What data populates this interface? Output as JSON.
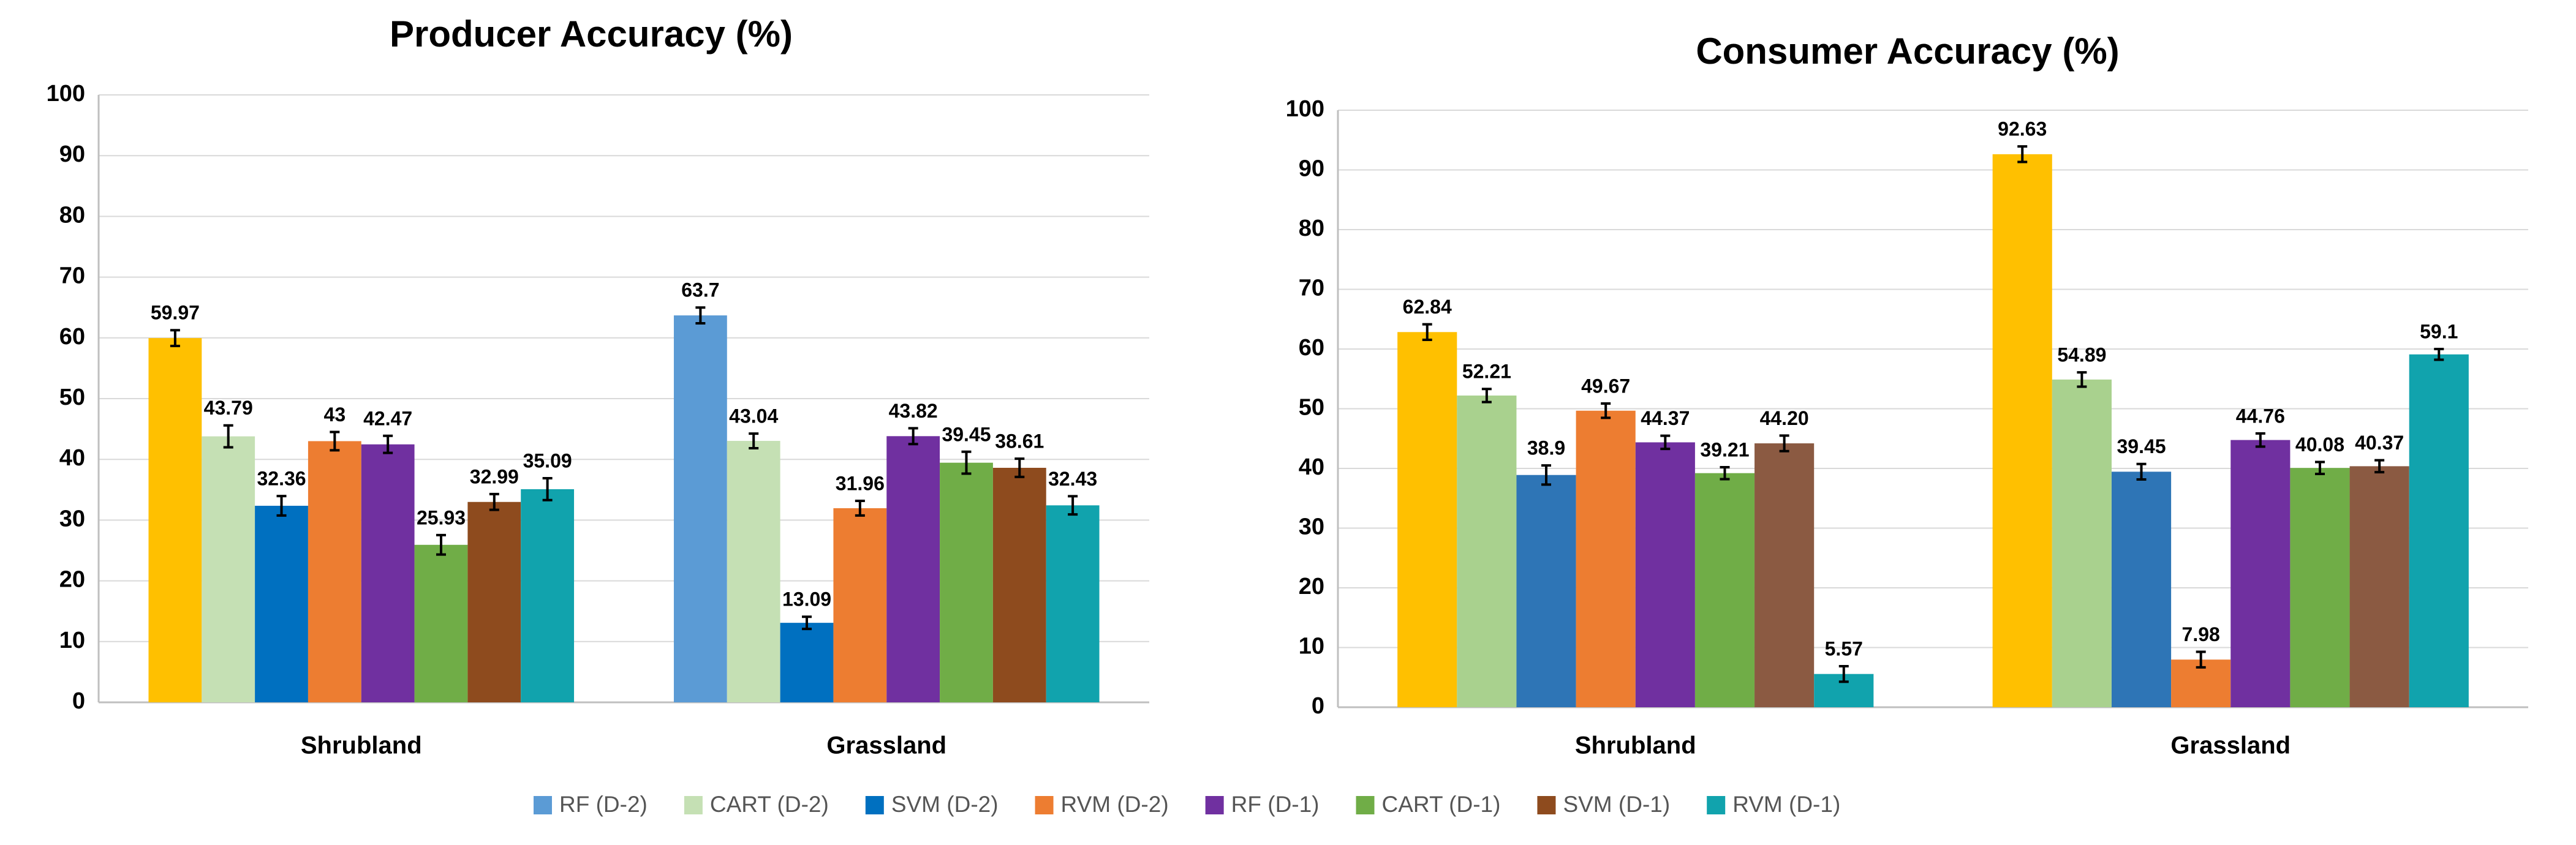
{
  "chart_data": [
    {
      "type": "bar",
      "title": "Producer  Accuracy (%)",
      "categories": [
        "Shrubland",
        "Grassland"
      ],
      "ylim": [
        0,
        100
      ],
      "yticks": [
        0,
        10,
        20,
        30,
        40,
        50,
        60,
        70,
        80,
        90,
        100
      ],
      "grid": true,
      "series": [
        {
          "colors": [
            "#ffc000",
            "#5b9bd5"
          ],
          "values": [
            59.97,
            63.7
          ],
          "errors": [
            1.3,
            1.3
          ]
        },
        {
          "colors": [
            "#c5e0b4",
            "#c5e0b4"
          ],
          "values": [
            43.79,
            43.04
          ],
          "errors": [
            1.8,
            1.2
          ]
        },
        {
          "colors": [
            "#0070c0",
            "#0070c0"
          ],
          "values": [
            32.36,
            13.09
          ],
          "errors": [
            1.6,
            1.0
          ]
        },
        {
          "colors": [
            "#ed7d31",
            "#ed7d31"
          ],
          "values": [
            43,
            31.96
          ],
          "errors": [
            1.5,
            1.2
          ]
        },
        {
          "colors": [
            "#7030a0",
            "#7030a0"
          ],
          "values": [
            42.47,
            43.82
          ],
          "errors": [
            1.4,
            1.3
          ]
        },
        {
          "colors": [
            "#70ad47",
            "#70ad47"
          ],
          "values": [
            25.93,
            39.45
          ],
          "errors": [
            1.6,
            1.8
          ]
        },
        {
          "colors": [
            "#8e4b1e",
            "#8e4b1e"
          ],
          "values": [
            32.99,
            38.61
          ],
          "errors": [
            1.3,
            1.5
          ]
        },
        {
          "colors": [
            "#11a3ad",
            "#11a3ad"
          ],
          "values": [
            35.09,
            32.43
          ],
          "errors": [
            1.8,
            1.5
          ]
        }
      ]
    },
    {
      "type": "bar",
      "title": "Consumer Accuracy (%)",
      "categories": [
        "Shrubland",
        "Grassland"
      ],
      "ylim": [
        0,
        100
      ],
      "yticks": [
        0,
        10,
        20,
        30,
        40,
        50,
        60,
        70,
        80,
        90,
        100
      ],
      "grid": true,
      "series": [
        {
          "colors": [
            "#ffc000",
            "#ffc000"
          ],
          "values": [
            62.84,
            92.63
          ],
          "errors": [
            1.3,
            1.3
          ]
        },
        {
          "colors": [
            "#a9d18e",
            "#a9d18e"
          ],
          "values": [
            52.21,
            54.89
          ],
          "errors": [
            1.1,
            1.2
          ]
        },
        {
          "colors": [
            "#2e75b6",
            "#2e75b6"
          ],
          "values": [
            38.9,
            39.45
          ],
          "errors": [
            1.6,
            1.3
          ]
        },
        {
          "colors": [
            "#ed7d31",
            "#ed7d31"
          ],
          "values": [
            49.67,
            7.98
          ],
          "errors": [
            1.2,
            1.3
          ]
        },
        {
          "colors": [
            "#7030a0",
            "#7030a0"
          ],
          "values": [
            44.37,
            44.76
          ],
          "errors": [
            1.1,
            1.1
          ]
        },
        {
          "colors": [
            "#70ad47",
            "#70ad47"
          ],
          "values": [
            39.21,
            40.08
          ],
          "errors": [
            1.0,
            1.0
          ]
        },
        {
          "colors": [
            "#8b5a42",
            "#8b5a42"
          ],
          "values": [
            44.2,
            40.37
          ],
          "value_labels": [
            "44.20",
            "40.37"
          ],
          "errors": [
            1.3,
            1.0
          ]
        },
        {
          "colors": [
            "#11a3ad",
            "#11a3ad"
          ],
          "values": [
            5.57,
            59.1
          ],
          "errors": [
            1.3,
            0.9
          ]
        }
      ]
    }
  ],
  "legend": [
    {
      "name": "RF (D-2)",
      "color": "#5b9bd5"
    },
    {
      "name": "CART (D-2)",
      "color": "#c5e0b4"
    },
    {
      "name": "SVM (D-2)",
      "color": "#0070c0"
    },
    {
      "name": "RVM (D-2)",
      "color": "#ed7d31"
    },
    {
      "name": "RF (D-1)",
      "color": "#7030a0"
    },
    {
      "name": "CART (D-1)",
      "color": "#70ad47"
    },
    {
      "name": "SVM (D-1)",
      "color": "#8e4b1e"
    },
    {
      "name": "RVM (D-1)",
      "color": "#11a3ad"
    }
  ]
}
